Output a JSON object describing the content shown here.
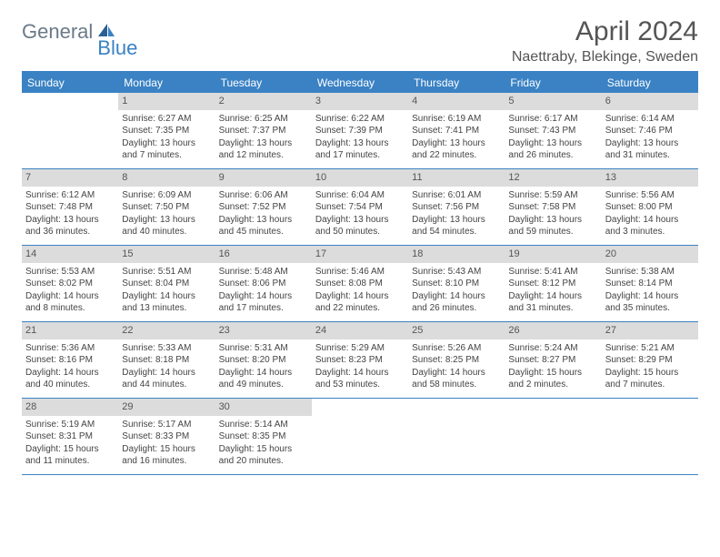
{
  "logo": {
    "text1": "General",
    "text2": "Blue"
  },
  "title": "April 2024",
  "location": "Naettraby, Blekinge, Sweden",
  "weekdays": [
    "Sunday",
    "Monday",
    "Tuesday",
    "Wednesday",
    "Thursday",
    "Friday",
    "Saturday"
  ],
  "colors": {
    "accent": "#3a82c4",
    "daynum_bg": "#dcdcdc",
    "text": "#444"
  },
  "weeks": [
    [
      {
        "n": "",
        "sr": "",
        "ss": "",
        "dl1": "",
        "dl2": "",
        "empty": true
      },
      {
        "n": "1",
        "sr": "Sunrise: 6:27 AM",
        "ss": "Sunset: 7:35 PM",
        "dl1": "Daylight: 13 hours",
        "dl2": "and 7 minutes."
      },
      {
        "n": "2",
        "sr": "Sunrise: 6:25 AM",
        "ss": "Sunset: 7:37 PM",
        "dl1": "Daylight: 13 hours",
        "dl2": "and 12 minutes."
      },
      {
        "n": "3",
        "sr": "Sunrise: 6:22 AM",
        "ss": "Sunset: 7:39 PM",
        "dl1": "Daylight: 13 hours",
        "dl2": "and 17 minutes."
      },
      {
        "n": "4",
        "sr": "Sunrise: 6:19 AM",
        "ss": "Sunset: 7:41 PM",
        "dl1": "Daylight: 13 hours",
        "dl2": "and 22 minutes."
      },
      {
        "n": "5",
        "sr": "Sunrise: 6:17 AM",
        "ss": "Sunset: 7:43 PM",
        "dl1": "Daylight: 13 hours",
        "dl2": "and 26 minutes."
      },
      {
        "n": "6",
        "sr": "Sunrise: 6:14 AM",
        "ss": "Sunset: 7:46 PM",
        "dl1": "Daylight: 13 hours",
        "dl2": "and 31 minutes."
      }
    ],
    [
      {
        "n": "7",
        "sr": "Sunrise: 6:12 AM",
        "ss": "Sunset: 7:48 PM",
        "dl1": "Daylight: 13 hours",
        "dl2": "and 36 minutes."
      },
      {
        "n": "8",
        "sr": "Sunrise: 6:09 AM",
        "ss": "Sunset: 7:50 PM",
        "dl1": "Daylight: 13 hours",
        "dl2": "and 40 minutes."
      },
      {
        "n": "9",
        "sr": "Sunrise: 6:06 AM",
        "ss": "Sunset: 7:52 PM",
        "dl1": "Daylight: 13 hours",
        "dl2": "and 45 minutes."
      },
      {
        "n": "10",
        "sr": "Sunrise: 6:04 AM",
        "ss": "Sunset: 7:54 PM",
        "dl1": "Daylight: 13 hours",
        "dl2": "and 50 minutes."
      },
      {
        "n": "11",
        "sr": "Sunrise: 6:01 AM",
        "ss": "Sunset: 7:56 PM",
        "dl1": "Daylight: 13 hours",
        "dl2": "and 54 minutes."
      },
      {
        "n": "12",
        "sr": "Sunrise: 5:59 AM",
        "ss": "Sunset: 7:58 PM",
        "dl1": "Daylight: 13 hours",
        "dl2": "and 59 minutes."
      },
      {
        "n": "13",
        "sr": "Sunrise: 5:56 AM",
        "ss": "Sunset: 8:00 PM",
        "dl1": "Daylight: 14 hours",
        "dl2": "and 3 minutes."
      }
    ],
    [
      {
        "n": "14",
        "sr": "Sunrise: 5:53 AM",
        "ss": "Sunset: 8:02 PM",
        "dl1": "Daylight: 14 hours",
        "dl2": "and 8 minutes."
      },
      {
        "n": "15",
        "sr": "Sunrise: 5:51 AM",
        "ss": "Sunset: 8:04 PM",
        "dl1": "Daylight: 14 hours",
        "dl2": "and 13 minutes."
      },
      {
        "n": "16",
        "sr": "Sunrise: 5:48 AM",
        "ss": "Sunset: 8:06 PM",
        "dl1": "Daylight: 14 hours",
        "dl2": "and 17 minutes."
      },
      {
        "n": "17",
        "sr": "Sunrise: 5:46 AM",
        "ss": "Sunset: 8:08 PM",
        "dl1": "Daylight: 14 hours",
        "dl2": "and 22 minutes."
      },
      {
        "n": "18",
        "sr": "Sunrise: 5:43 AM",
        "ss": "Sunset: 8:10 PM",
        "dl1": "Daylight: 14 hours",
        "dl2": "and 26 minutes."
      },
      {
        "n": "19",
        "sr": "Sunrise: 5:41 AM",
        "ss": "Sunset: 8:12 PM",
        "dl1": "Daylight: 14 hours",
        "dl2": "and 31 minutes."
      },
      {
        "n": "20",
        "sr": "Sunrise: 5:38 AM",
        "ss": "Sunset: 8:14 PM",
        "dl1": "Daylight: 14 hours",
        "dl2": "and 35 minutes."
      }
    ],
    [
      {
        "n": "21",
        "sr": "Sunrise: 5:36 AM",
        "ss": "Sunset: 8:16 PM",
        "dl1": "Daylight: 14 hours",
        "dl2": "and 40 minutes."
      },
      {
        "n": "22",
        "sr": "Sunrise: 5:33 AM",
        "ss": "Sunset: 8:18 PM",
        "dl1": "Daylight: 14 hours",
        "dl2": "and 44 minutes."
      },
      {
        "n": "23",
        "sr": "Sunrise: 5:31 AM",
        "ss": "Sunset: 8:20 PM",
        "dl1": "Daylight: 14 hours",
        "dl2": "and 49 minutes."
      },
      {
        "n": "24",
        "sr": "Sunrise: 5:29 AM",
        "ss": "Sunset: 8:23 PM",
        "dl1": "Daylight: 14 hours",
        "dl2": "and 53 minutes."
      },
      {
        "n": "25",
        "sr": "Sunrise: 5:26 AM",
        "ss": "Sunset: 8:25 PM",
        "dl1": "Daylight: 14 hours",
        "dl2": "and 58 minutes."
      },
      {
        "n": "26",
        "sr": "Sunrise: 5:24 AM",
        "ss": "Sunset: 8:27 PM",
        "dl1": "Daylight: 15 hours",
        "dl2": "and 2 minutes."
      },
      {
        "n": "27",
        "sr": "Sunrise: 5:21 AM",
        "ss": "Sunset: 8:29 PM",
        "dl1": "Daylight: 15 hours",
        "dl2": "and 7 minutes."
      }
    ],
    [
      {
        "n": "28",
        "sr": "Sunrise: 5:19 AM",
        "ss": "Sunset: 8:31 PM",
        "dl1": "Daylight: 15 hours",
        "dl2": "and 11 minutes."
      },
      {
        "n": "29",
        "sr": "Sunrise: 5:17 AM",
        "ss": "Sunset: 8:33 PM",
        "dl1": "Daylight: 15 hours",
        "dl2": "and 16 minutes."
      },
      {
        "n": "30",
        "sr": "Sunrise: 5:14 AM",
        "ss": "Sunset: 8:35 PM",
        "dl1": "Daylight: 15 hours",
        "dl2": "and 20 minutes."
      },
      {
        "n": "",
        "sr": "",
        "ss": "",
        "dl1": "",
        "dl2": "",
        "empty": true
      },
      {
        "n": "",
        "sr": "",
        "ss": "",
        "dl1": "",
        "dl2": "",
        "empty": true
      },
      {
        "n": "",
        "sr": "",
        "ss": "",
        "dl1": "",
        "dl2": "",
        "empty": true
      },
      {
        "n": "",
        "sr": "",
        "ss": "",
        "dl1": "",
        "dl2": "",
        "empty": true
      }
    ]
  ]
}
